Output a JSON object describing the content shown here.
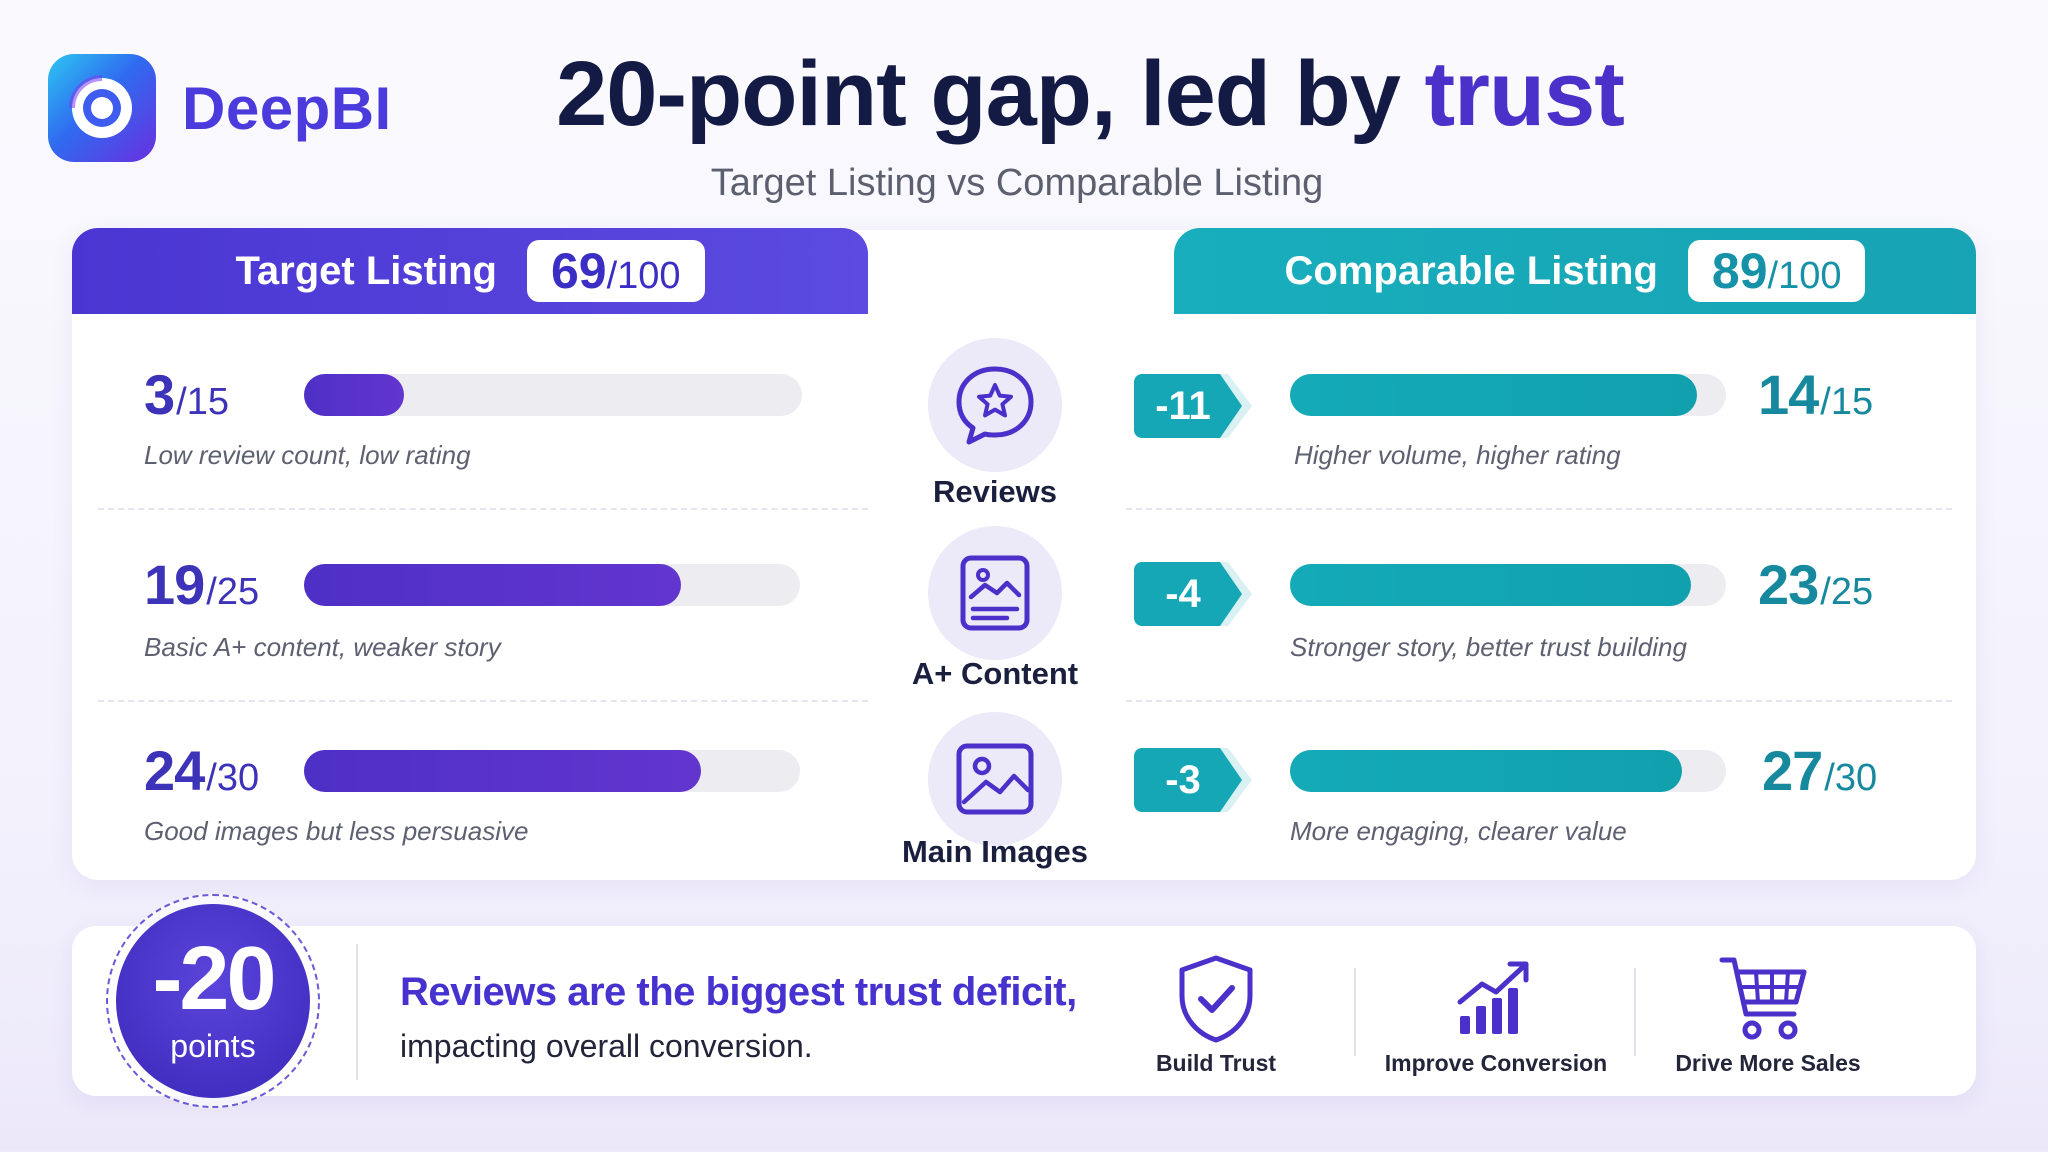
{
  "brand": {
    "name": "DeepBI"
  },
  "header": {
    "title_main": "20-point gap, led by",
    "title_accent": "trust",
    "subtitle": "Target Listing vs Comparable Listing"
  },
  "target": {
    "label": "Target Listing",
    "total": "69",
    "total_max": "/100"
  },
  "comparable": {
    "label": "Comparable Listing",
    "total": "89",
    "total_max": "/100"
  },
  "rows": [
    {
      "category": "Reviews",
      "icon": "star-chat-icon",
      "target_score": "3",
      "target_max": "/15",
      "target_fill": 0.2,
      "target_desc": "Low review count, low rating",
      "diff": "-11",
      "comparable_score": "14",
      "comparable_max": "/15",
      "comparable_fill": 0.933,
      "comparable_desc": "Higher volume, higher rating"
    },
    {
      "category": "A+ Content",
      "icon": "content-page-icon",
      "target_score": "19",
      "target_max": "/25",
      "target_fill": 0.76,
      "target_desc": "Basic A+ content, weaker story",
      "diff": "-4",
      "comparable_score": "23",
      "comparable_max": "/25",
      "comparable_fill": 0.92,
      "comparable_desc": "Stronger story, better trust building"
    },
    {
      "category": "Main Images",
      "icon": "image-icon",
      "target_score": "24",
      "target_max": "/30",
      "target_fill": 0.8,
      "target_desc": "Good images but less persuasive",
      "diff": "-3",
      "comparable_score": "27",
      "comparable_max": "/30",
      "comparable_fill": 0.9,
      "comparable_desc": "More engaging, clearer value"
    }
  ],
  "summary": {
    "gap_value": "-20",
    "gap_unit": "points",
    "headline": "Reviews are the biggest trust deficit,",
    "detail": "impacting overall conversion."
  },
  "benefits": [
    {
      "label": "Build Trust",
      "icon": "shield-check-icon"
    },
    {
      "label": "Improve Conversion",
      "icon": "growth-chart-icon"
    },
    {
      "label": "Drive More Sales",
      "icon": "shopping-cart-icon"
    }
  ],
  "colors": {
    "purple": "#4b30c9",
    "teal": "#17a3b4",
    "navy": "#131a44"
  }
}
